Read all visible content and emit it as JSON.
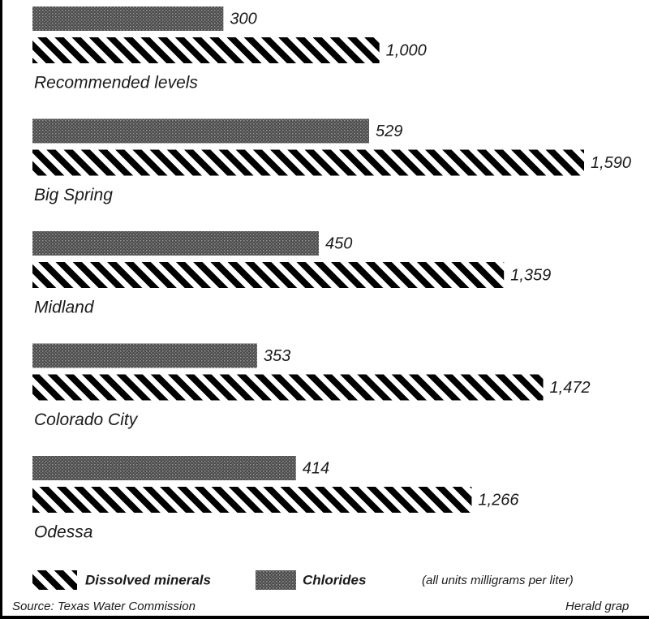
{
  "chart_data": {
    "type": "bar",
    "orientation": "horizontal",
    "categories": [
      "Recommended levels",
      "Big Spring",
      "Midland",
      "Colorado City",
      "Odessa"
    ],
    "series": [
      {
        "name": "Chlorides",
        "color": "#4d4d4d",
        "pattern": "stipple",
        "values": [
          300,
          529,
          450,
          353,
          414
        ]
      },
      {
        "name": "Dissolved minerals",
        "color": "#000000",
        "pattern": "stripes",
        "values": [
          1000,
          1590,
          1359,
          1472,
          1266
        ],
        "value_labels": [
          "1,000",
          "1,590",
          "1,359",
          "1,472",
          "1,266"
        ]
      }
    ],
    "note": "(all units milligrams per liter)",
    "source": "Source: Texas Water Commission",
    "credit": "Herald grap"
  }
}
